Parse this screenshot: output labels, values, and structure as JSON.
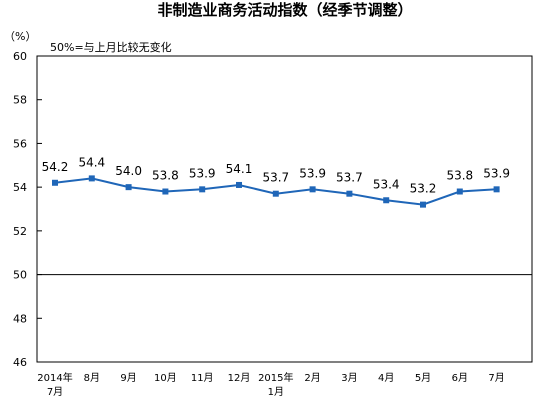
{
  "chart_data": {
    "type": "line",
    "title": "非制造业商务活动指数（经季节调整）",
    "unit_label": "（%）",
    "annotation": "50%=与上月比较无变化",
    "categories": [
      [
        "2014年",
        "7月"
      ],
      [
        "8月"
      ],
      [
        "9月"
      ],
      [
        "10月"
      ],
      [
        "11月"
      ],
      [
        "12月"
      ],
      [
        "2015年",
        "1月"
      ],
      [
        "2月"
      ],
      [
        "3月"
      ],
      [
        "4月"
      ],
      [
        "5月"
      ],
      [
        "6月"
      ],
      [
        "7月"
      ]
    ],
    "series": [
      {
        "values": [
          54.2,
          54.4,
          54.0,
          53.8,
          53.9,
          54.1,
          53.7,
          53.9,
          53.7,
          53.4,
          53.2,
          53.8,
          53.9
        ],
        "labels": [
          "54.2",
          "54.4",
          "54.0",
          "53.8",
          "53.9",
          "54.1",
          "53.7",
          "53.9",
          "53.7",
          "53.4",
          "53.2",
          "53.8",
          "53.9"
        ],
        "color": "#1f66b8"
      }
    ],
    "ylim": [
      46,
      60
    ],
    "yticks": [
      46,
      48,
      50,
      52,
      54,
      56,
      58,
      60
    ],
    "reference_line": 50,
    "grid": false
  }
}
